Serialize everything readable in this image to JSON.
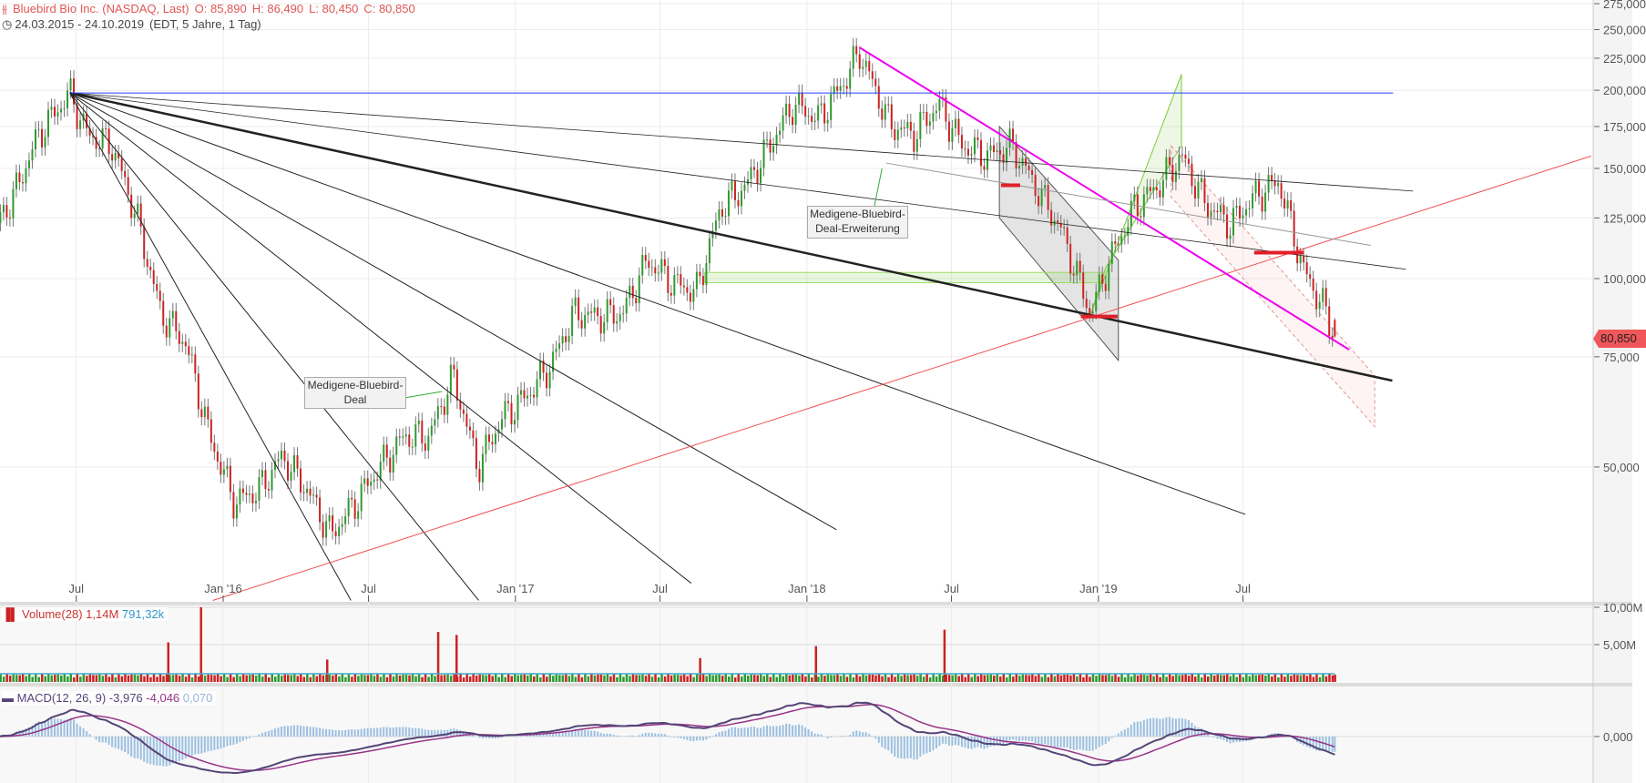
{
  "header": {
    "title": "Bluebird Bio Inc. (NASDAQ, Last)",
    "open": "O: 85,890",
    "high": "H: 86,490",
    "low": "L: 80,450",
    "close": "C: 80,850",
    "range": "24.03.2015 - 24.10.2019",
    "range_info": "(EDT, 5 Jahre, 1 Tag)",
    "icon": "candlestick-icon",
    "clock_icon": "clock-icon"
  },
  "last_price_tag": "80,850",
  "colors": {
    "up": "#2e9a2e",
    "down": "#cc2222",
    "accent": "#e05555",
    "fan": "#222222",
    "magenta": "#ee00ee",
    "support": "#f05050",
    "blue_level": "#2040ff"
  },
  "chart_data": {
    "type": "candlestick",
    "yscale": "log",
    "ylim": [
      30,
      280
    ],
    "grid": true,
    "y_ticks": [
      "275,000",
      "250,000",
      "225,000",
      "200,000",
      "175,000",
      "150,000",
      "125,000",
      "100,000",
      "75,000",
      "50,000"
    ],
    "y_tick_values": [
      275,
      250,
      225,
      200,
      175,
      150,
      125,
      100,
      75,
      50
    ],
    "x_ticks": [
      {
        "label": "Jul",
        "date": "2015-07-01"
      },
      {
        "label": "Jan '16",
        "date": "2016-01-01"
      },
      {
        "label": "Jul",
        "date": "2016-07-01"
      },
      {
        "label": "Jan '17",
        "date": "2017-01-01"
      },
      {
        "label": "Jul",
        "date": "2017-07-01"
      },
      {
        "label": "Jan '18",
        "date": "2018-01-01"
      },
      {
        "label": "Jul",
        "date": "2018-07-01"
      },
      {
        "label": "Jan '19",
        "date": "2019-01-01"
      },
      {
        "label": "Jul",
        "date": "2019-07-01"
      }
    ],
    "approx_closes": [
      [
        "2015-03-24",
        122
      ],
      [
        "2015-04-15",
        137
      ],
      [
        "2015-05-15",
        170
      ],
      [
        "2015-06-23",
        198
      ],
      [
        "2015-07-15",
        170
      ],
      [
        "2015-08-15",
        163
      ],
      [
        "2015-09-15",
        125
      ],
      [
        "2015-10-15",
        88
      ],
      [
        "2015-11-15",
        79
      ],
      [
        "2015-12-15",
        56
      ],
      [
        "2016-01-15",
        44
      ],
      [
        "2016-02-15",
        46
      ],
      [
        "2016-03-15",
        52
      ],
      [
        "2016-04-15",
        46
      ],
      [
        "2016-05-15",
        39
      ],
      [
        "2016-06-15",
        44
      ],
      [
        "2016-07-15",
        50
      ],
      [
        "2016-08-15",
        56
      ],
      [
        "2016-09-15",
        56
      ],
      [
        "2016-10-15",
        70
      ],
      [
        "2016-11-15",
        50
      ],
      [
        "2016-12-15",
        60
      ],
      [
        "2017-01-15",
        65
      ],
      [
        "2017-02-15",
        73
      ],
      [
        "2017-03-15",
        88
      ],
      [
        "2017-04-15",
        87
      ],
      [
        "2017-05-15",
        88
      ],
      [
        "2017-06-15",
        107
      ],
      [
        "2017-07-15",
        99
      ],
      [
        "2017-08-15",
        95
      ],
      [
        "2017-09-15",
        130
      ],
      [
        "2017-10-15",
        140
      ],
      [
        "2017-11-15",
        163
      ],
      [
        "2017-12-15",
        190
      ],
      [
        "2018-01-15",
        180
      ],
      [
        "2018-02-15",
        205
      ],
      [
        "2018-03-08",
        230
      ],
      [
        "2018-04-15",
        176
      ],
      [
        "2018-05-15",
        170
      ],
      [
        "2018-06-15",
        190
      ],
      [
        "2018-07-15",
        163
      ],
      [
        "2018-08-15",
        157
      ],
      [
        "2018-09-15",
        163
      ],
      [
        "2018-10-15",
        140
      ],
      [
        "2018-11-15",
        120
      ],
      [
        "2018-12-22",
        88
      ],
      [
        "2019-01-15",
        107
      ],
      [
        "2019-02-15",
        130
      ],
      [
        "2019-03-15",
        140
      ],
      [
        "2019-04-15",
        157
      ],
      [
        "2019-05-15",
        132
      ],
      [
        "2019-06-15",
        122
      ],
      [
        "2019-07-15",
        135
      ],
      [
        "2019-08-15",
        143
      ],
      [
        "2019-09-15",
        103
      ],
      [
        "2019-10-10",
        90
      ],
      [
        "2019-10-24",
        80.85
      ]
    ],
    "last": {
      "date": "2019-10-24",
      "open": 85.89,
      "high": 86.49,
      "low": 80.45,
      "close": 80.85
    },
    "drawings": {
      "fan_origin": [
        "2015-06-23",
        198
      ],
      "fan_ends": [
        [
          "2020-01-30",
          138
        ],
        [
          "2020-01-21",
          103.5
        ],
        [
          "2020-01-04",
          68.7
        ],
        [
          "2019-07-04",
          42
        ],
        [
          "2018-02-07",
          39.7
        ],
        [
          "2017-08-09",
          32.6
        ],
        [
          "2016-11-16",
          30.6
        ],
        [
          "2016-06-09",
          30.6
        ]
      ],
      "fan_thick_index": 2,
      "horizontal_level": [
        [
          "2015-06-23",
          198
        ],
        [
          "2020-01-05",
          198
        ]
      ],
      "support_line": [
        [
          "2015-12-19",
          30.6
        ],
        [
          "2020-09-09",
          157
        ]
      ],
      "magenta_line": [
        [
          "2018-03-08",
          234
        ],
        [
          "2019-11-11",
          77
        ]
      ],
      "gray_line": [
        [
          "2018-04-10",
          153
        ],
        [
          "2019-12-08",
          113
        ]
      ],
      "gray_channel": [
        [
          "2018-08-30",
          175
        ],
        [
          "2019-01-26",
          107
        ],
        [
          "2019-01-26",
          74
        ],
        [
          "2018-08-30",
          125
        ]
      ],
      "green_channel": [
        [
          "2018-12-22",
          87.4
        ],
        [
          "2019-04-15",
          212
        ],
        [
          "2019-04-15",
          163
        ],
        [
          "2019-01-10",
          104
        ]
      ],
      "pink_channel": [
        [
          "2019-04-02",
          163
        ],
        [
          "2019-12-13",
          70
        ],
        [
          "2019-12-13",
          58
        ],
        [
          "2019-04-02",
          135
        ]
      ],
      "green_zone": [
        [
          "2017-08-26",
          102.3
        ],
        [
          "2019-01-11",
          98.5
        ]
      ],
      "red_marks": [
        [
          [
            "2018-12-10",
            87
          ],
          [
            "2019-01-25",
            87
          ]
        ],
        [
          [
            "2019-07-15",
            110
          ],
          [
            "2019-09-15",
            110
          ]
        ],
        [
          [
            "2018-09-01",
            141
          ],
          [
            "2018-09-25",
            141
          ]
        ]
      ]
    },
    "annotations": [
      {
        "text_line1": "Medigene-Bluebird-",
        "text_line2": "Deal",
        "target": [
          "2016-10-01",
          66
        ]
      },
      {
        "text_line1": "Medigene-Bluebird-",
        "text_line2": "Deal-Erweiterung",
        "target": [
          "2018-04-05",
          150
        ]
      }
    ],
    "volume": {
      "label": "Volume(28)",
      "value": "1,14M",
      "avg": "791,32k",
      "y_ticks": [
        "10,00M",
        "5,00M"
      ],
      "spikes_millions": [
        [
          "2015-12-04",
          10
        ],
        [
          "2015-10-24",
          5.3
        ],
        [
          "2016-09-26",
          6.7
        ],
        [
          "2016-10-19",
          6.3
        ],
        [
          "2018-06-22",
          7
        ],
        [
          "2018-01-12",
          4.8
        ],
        [
          "2016-05-10",
          3
        ],
        [
          "2017-08-20",
          3.2
        ]
      ]
    },
    "macd": {
      "label": "MACD(12, 26, 9)",
      "macd": "-3,976",
      "signal": "-4,046",
      "histogram": "0,070",
      "y_ticks": [
        "0,000"
      ]
    }
  }
}
